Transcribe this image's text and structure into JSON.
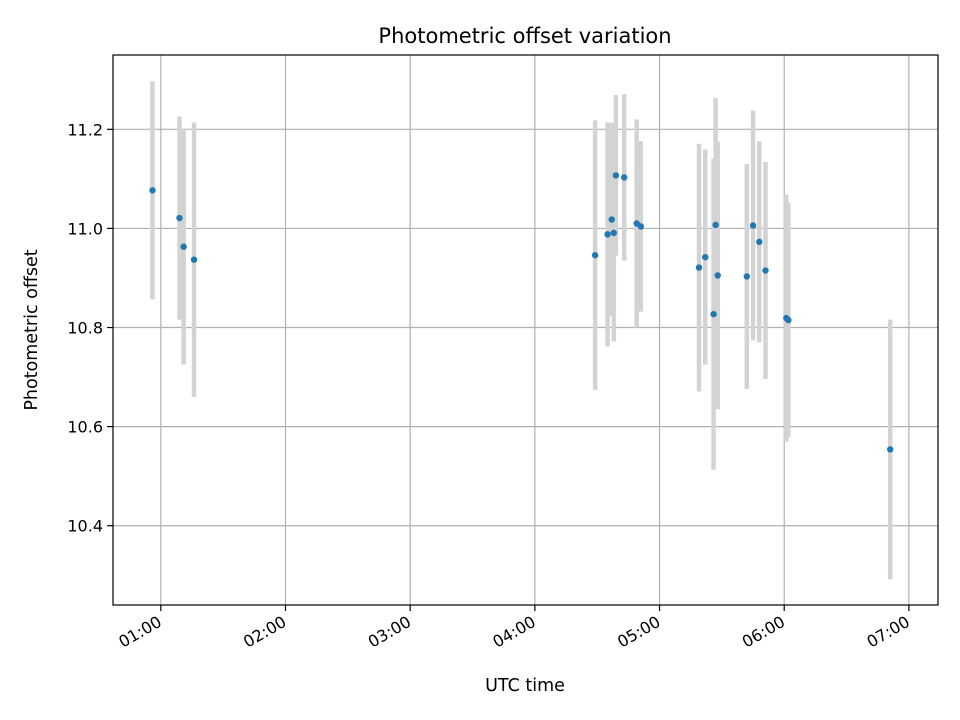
{
  "chart_data": {
    "type": "scatter",
    "title": "Photometric offset variation",
    "xlabel": "UTC time",
    "ylabel": "Photometric offset",
    "x_unit": "UTC time (HH:MM)",
    "xlim": [
      "00:37",
      "07:14"
    ],
    "ylim": [
      10.24,
      11.35
    ],
    "x_ticks": [
      "01:00",
      "02:00",
      "03:00",
      "04:00",
      "05:00",
      "06:00",
      "07:00"
    ],
    "y_ticks": [
      "10.4",
      "10.6",
      "10.8",
      "11.0",
      "11.2"
    ],
    "grid": true,
    "point_color": "#1f77b4",
    "errorbar_color": "#d3d3d3",
    "series": [
      {
        "points": [
          {
            "x": "00:56",
            "y": 11.077,
            "err": 0.22
          },
          {
            "x": "01:09",
            "y": 11.021,
            "err": 0.205
          },
          {
            "x": "01:11",
            "y": 10.963,
            "err": 0.238
          },
          {
            "x": "01:16",
            "y": 10.937,
            "err": 0.277
          },
          {
            "x": "04:29",
            "y": 10.946,
            "err": 0.272
          },
          {
            "x": "04:35",
            "y": 10.988,
            "err": 0.226
          },
          {
            "x": "04:37",
            "y": 11.018,
            "err": 0.195
          },
          {
            "x": "04:38",
            "y": 10.991,
            "err": 0.219
          },
          {
            "x": "04:39",
            "y": 11.107,
            "err": 0.162
          },
          {
            "x": "04:43",
            "y": 11.103,
            "err": 0.168
          },
          {
            "x": "04:49",
            "y": 11.01,
            "err": 0.21
          },
          {
            "x": "04:51",
            "y": 11.004,
            "err": 0.172
          },
          {
            "x": "05:19",
            "y": 10.921,
            "err": 0.25
          },
          {
            "x": "05:22",
            "y": 10.942,
            "err": 0.217
          },
          {
            "x": "05:26",
            "y": 10.827,
            "err": 0.314
          },
          {
            "x": "05:27",
            "y": 11.007,
            "err": 0.256
          },
          {
            "x": "05:28",
            "y": 10.905,
            "err": 0.27
          },
          {
            "x": "05:42",
            "y": 10.903,
            "err": 0.227
          },
          {
            "x": "05:45",
            "y": 11.006,
            "err": 0.232
          },
          {
            "x": "05:48",
            "y": 10.973,
            "err": 0.203
          },
          {
            "x": "05:51",
            "y": 10.915,
            "err": 0.219
          },
          {
            "x": "06:01",
            "y": 10.819,
            "err": 0.249
          },
          {
            "x": "06:02",
            "y": 10.815,
            "err": 0.237
          },
          {
            "x": "06:51",
            "y": 10.554,
            "err": 0.262
          }
        ]
      }
    ]
  }
}
